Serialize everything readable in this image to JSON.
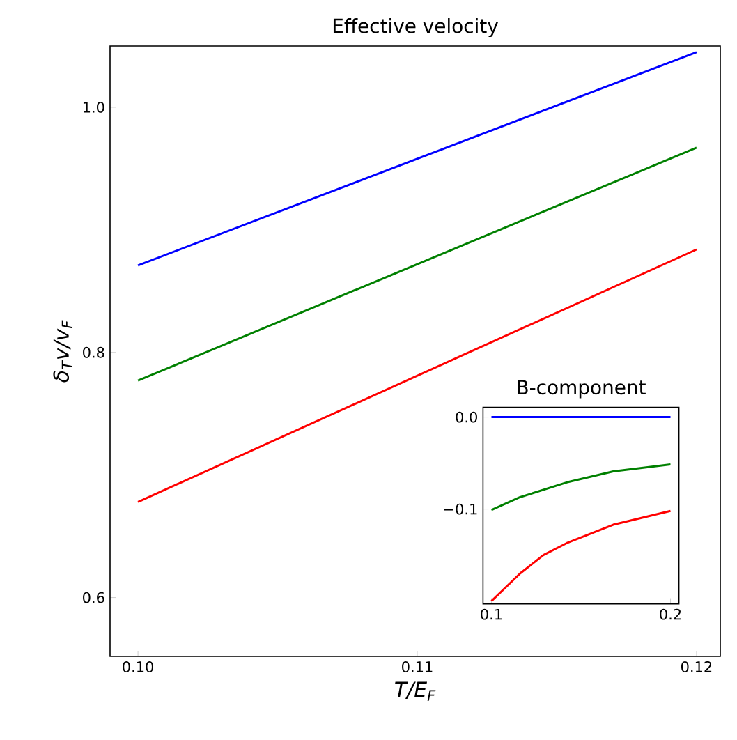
{
  "chart_data": [
    {
      "type": "line",
      "title": "Effective velocity",
      "xlabel": "T/E$_{F}$",
      "ylabel": "δ$_{T}$v/v$_{F}$",
      "x": [
        0.1,
        0.12
      ],
      "series": [
        {
          "color": "#0000ff",
          "values": [
            0.871,
            1.045
          ]
        },
        {
          "color": "#008000",
          "values": [
            0.777,
            0.967
          ]
        },
        {
          "color": "#ff0000",
          "values": [
            0.678,
            0.884
          ]
        }
      ],
      "xlim": [
        0.099,
        0.12085
      ],
      "ylim": [
        0.552,
        1.05
      ],
      "xticks": [
        {
          "value": 0.1,
          "label": "0.10"
        },
        {
          "value": 0.11,
          "label": "0.11"
        },
        {
          "value": 0.12,
          "label": "0.12"
        }
      ],
      "yticks": [
        {
          "value": 0.6,
          "label": "0.6"
        },
        {
          "value": 0.8,
          "label": "0.8"
        },
        {
          "value": 1.0,
          "label": "1.0"
        }
      ]
    },
    {
      "type": "line",
      "title": "B-component",
      "series": [
        {
          "color": "#0000ff",
          "x": [
            0.1,
            0.2
          ],
          "values": [
            0.0,
            0.0
          ]
        },
        {
          "color": "#008000",
          "x": [
            0.1,
            0.116,
            0.142,
            0.168,
            0.2
          ],
          "values": [
            -0.101,
            -0.087,
            -0.071,
            -0.059,
            -0.0515
          ]
        },
        {
          "color": "#ff0000",
          "x": [
            0.1,
            0.116,
            0.129,
            0.142,
            0.168,
            0.2
          ],
          "values": [
            -0.2,
            -0.17,
            -0.15,
            -0.137,
            -0.117,
            -0.102
          ]
        }
      ],
      "xlim": [
        0.0953,
        0.2047
      ],
      "ylim": [
        -0.203,
        0.0106
      ],
      "xticks": [
        0.1,
        0.2
      ],
      "yticks": [
        {
          "value": 0.0,
          "label": "0.0"
        },
        {
          "value": -0.1,
          "label": "−0.1"
        }
      ]
    }
  ]
}
